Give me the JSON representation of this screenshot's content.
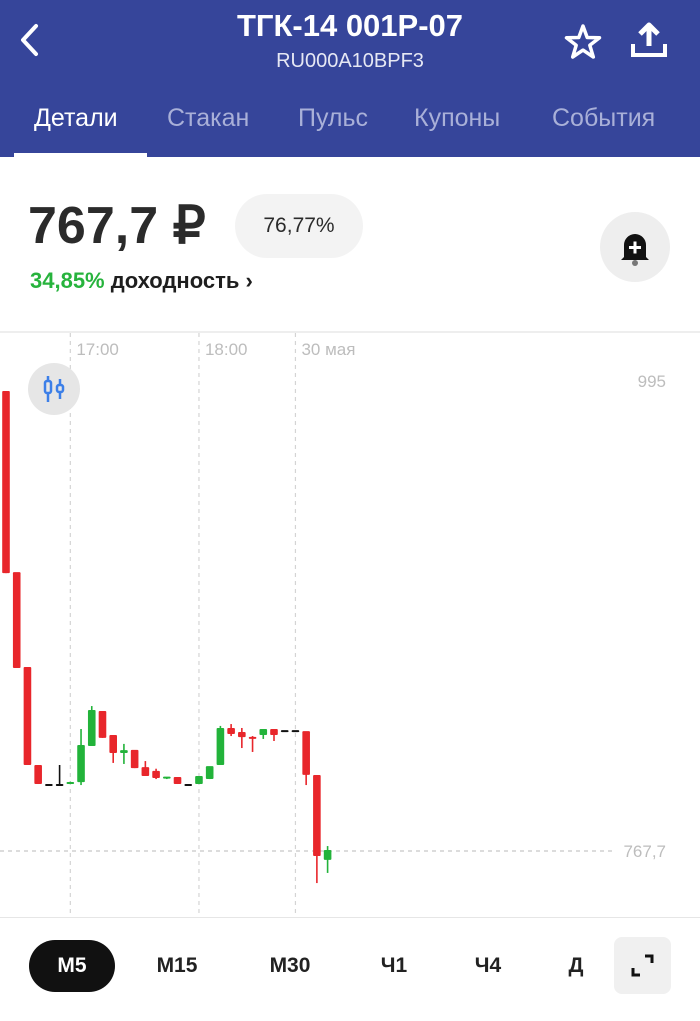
{
  "header": {
    "title": "ТГК-14 001Р-07",
    "isin": "RU000A10BPF3",
    "icons": [
      "back-icon",
      "star-icon",
      "share-icon"
    ],
    "background": "#36459a"
  },
  "tabs": [
    {
      "label": "Детали",
      "active": true
    },
    {
      "label": "Стакан"
    },
    {
      "label": "Пульс"
    },
    {
      "label": "Купоны"
    },
    {
      "label": "События"
    }
  ],
  "quote": {
    "price": "767,7 ₽",
    "percent_of_nominal": "76,77%",
    "yield_value": "34,85%",
    "yield_label": "доходность ›",
    "yield_color": "#27b33d"
  },
  "chart_data": {
    "type": "candlestick",
    "x_ticks": [
      {
        "label": "17:00",
        "candle_index": 6
      },
      {
        "label": "18:00",
        "candle_index": 18
      },
      {
        "label": "30 мая",
        "candle_index": 27
      }
    ],
    "y_labels": [
      {
        "label": "995",
        "value": 995
      },
      {
        "label": "767,7",
        "value": 767.7
      }
    ],
    "last_price": 767.7,
    "colors": {
      "up": "#22b33a",
      "down": "#e8262b",
      "flat": "#111111"
    },
    "candles": [
      {
        "o": 989.7,
        "h": 989.7,
        "l": 902.1,
        "c": 902.1
      },
      {
        "o": 902.1,
        "h": 902.1,
        "l": 856.2,
        "c": 856.2
      },
      {
        "o": 856.2,
        "h": 856.2,
        "l": 809.3,
        "c": 809.3
      },
      {
        "o": 808.8,
        "h": 808.8,
        "l": 800.1,
        "c": 800.1
      },
      {
        "o": 799.6,
        "h": 799.6,
        "l": 799.6,
        "c": 799.6
      },
      {
        "o": 799.6,
        "h": 809.3,
        "l": 799.6,
        "c": 799.6
      },
      {
        "o": 800.3,
        "h": 801.2,
        "l": 800.1,
        "c": 800.6
      },
      {
        "o": 801.0,
        "h": 826.7,
        "l": 799.6,
        "c": 818.5
      },
      {
        "o": 818.5,
        "h": 837.8,
        "l": 818.5,
        "c": 835.4
      },
      {
        "o": 834.9,
        "h": 834.9,
        "l": 822.4,
        "c": 822.4
      },
      {
        "o": 823.3,
        "h": 823.3,
        "l": 810.3,
        "c": 815.1
      },
      {
        "o": 815.1,
        "h": 819.5,
        "l": 809.8,
        "c": 816.0
      },
      {
        "o": 816.1,
        "h": 816.1,
        "l": 807.8,
        "c": 807.8
      },
      {
        "o": 807.8,
        "h": 811.2,
        "l": 804.0,
        "c": 804.0
      },
      {
        "o": 806.0,
        "h": 807.5,
        "l": 802.5,
        "c": 803.0
      },
      {
        "o": 803.0,
        "h": 803.5,
        "l": 802.5,
        "c": 803.2
      },
      {
        "o": 803.0,
        "h": 803.0,
        "l": 800.1,
        "c": 800.1
      },
      {
        "o": 799.6,
        "h": 799.6,
        "l": 799.6,
        "c": 799.6
      },
      {
        "o": 800.1,
        "h": 803.5,
        "l": 800.1,
        "c": 803.5
      },
      {
        "o": 802.5,
        "h": 808.3,
        "l": 802.5,
        "c": 808.3
      },
      {
        "o": 809.3,
        "h": 828.2,
        "l": 809.3,
        "c": 826.7
      },
      {
        "o": 826.7,
        "h": 829.1,
        "l": 823.3,
        "c": 824.3
      },
      {
        "o": 824.8,
        "h": 827.2,
        "l": 817.5,
        "c": 822.8
      },
      {
        "o": 822.4,
        "h": 823.3,
        "l": 815.6,
        "c": 822.0
      },
      {
        "o": 823.8,
        "h": 826.2,
        "l": 821.9,
        "c": 826.2
      },
      {
        "o": 826.2,
        "h": 826.7,
        "l": 820.9,
        "c": 823.8
      },
      {
        "o": 825.7,
        "h": 825.7,
        "l": 825.7,
        "c": 825.7
      },
      {
        "o": 825.7,
        "h": 825.7,
        "l": 825.7,
        "c": 825.7
      },
      {
        "o": 825.2,
        "h": 825.2,
        "l": 799.6,
        "c": 804.5
      },
      {
        "o": 804.0,
        "h": 804.0,
        "l": 752.2,
        "c": 765.3
      },
      {
        "o": 763.4,
        "h": 770.1,
        "l": 757.1,
        "c": 767.7
      }
    ]
  },
  "timeframes": [
    {
      "label": "М5",
      "active": true
    },
    {
      "label": "М15"
    },
    {
      "label": "М30"
    },
    {
      "label": "Ч1"
    },
    {
      "label": "Ч4"
    },
    {
      "label": "Д"
    }
  ],
  "controls": {
    "chart_type_icon": "candlestick-icon",
    "expand_icon": "expand-icon",
    "alert_icon": "bell-plus-icon"
  }
}
